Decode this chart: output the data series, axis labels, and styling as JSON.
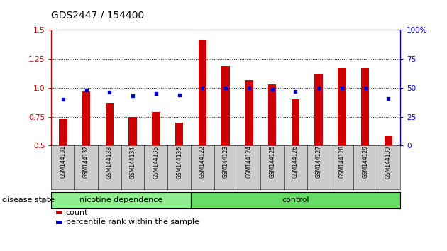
{
  "title": "GDS2447 / 154400",
  "samples": [
    "GSM144131",
    "GSM144132",
    "GSM144133",
    "GSM144134",
    "GSM144135",
    "GSM144136",
    "GSM144122",
    "GSM144123",
    "GSM144124",
    "GSM144125",
    "GSM144126",
    "GSM144127",
    "GSM144128",
    "GSM144129",
    "GSM144130"
  ],
  "counts": [
    0.73,
    0.97,
    0.87,
    0.75,
    0.79,
    0.7,
    1.42,
    1.19,
    1.07,
    1.03,
    0.9,
    1.12,
    1.17,
    1.17,
    0.58
  ],
  "percentiles": [
    40,
    48,
    46,
    43,
    45,
    44,
    50,
    50,
    50,
    49,
    47,
    50,
    50,
    50,
    41
  ],
  "bar_color": "#cc0000",
  "dot_color": "#0000cc",
  "ylim_left": [
    0.5,
    1.5
  ],
  "ylim_right": [
    0,
    100
  ],
  "yticks_left": [
    0.5,
    0.75,
    1.0,
    1.25,
    1.5
  ],
  "yticks_right": [
    0,
    25,
    50,
    75,
    100
  ],
  "groups": [
    {
      "label": "nicotine dependence",
      "start": 0,
      "end": 6,
      "color": "#90ee90"
    },
    {
      "label": "control",
      "start": 6,
      "end": 15,
      "color": "#66dd66"
    }
  ],
  "disease_state_label": "disease state",
  "legend_items": [
    {
      "label": "count",
      "color": "#cc0000"
    },
    {
      "label": "percentile rank within the sample",
      "color": "#0000cc"
    }
  ],
  "xtick_bg_color": "#cccccc",
  "background_color": "#ffffff",
  "title_fontsize": 10,
  "tick_fontsize": 7.5,
  "legend_fontsize": 8,
  "group_fontsize": 8,
  "bar_width": 0.35
}
